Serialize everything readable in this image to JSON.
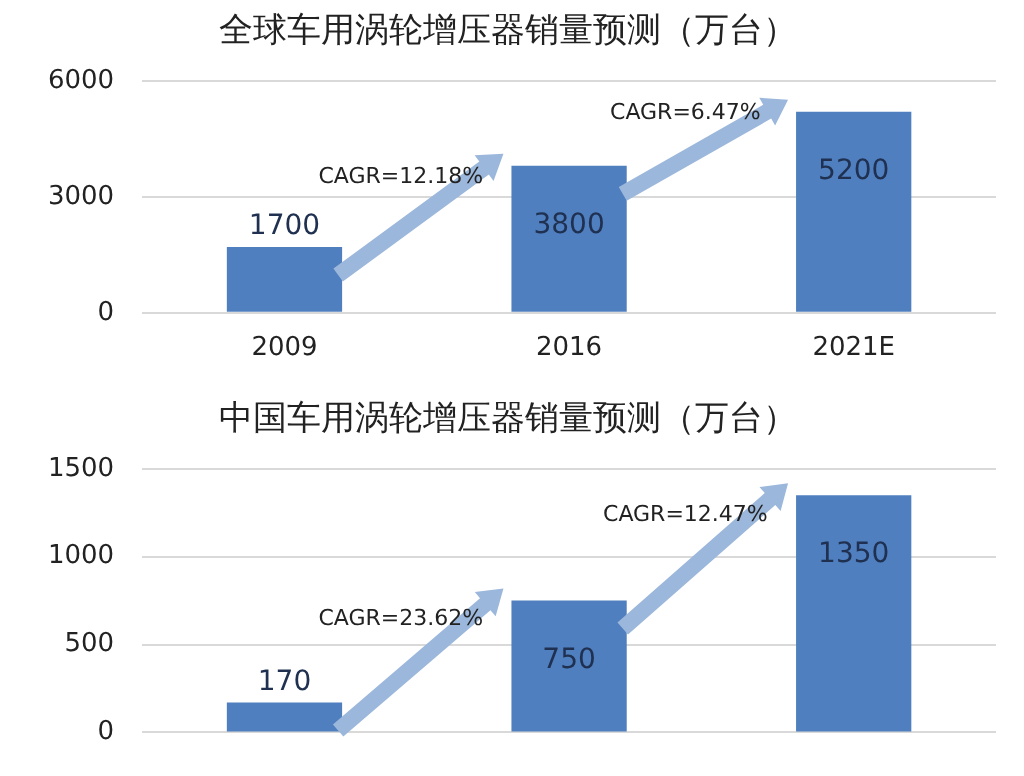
{
  "chart_data": [
    {
      "type": "bar",
      "title": "全球车用涡轮增压器销量预测（万台）",
      "categories": [
        "2009",
        "2016",
        "2021E"
      ],
      "values": [
        1700,
        3800,
        5200
      ],
      "color": "#4f7fbe",
      "ylim": [
        0,
        6000
      ],
      "yticks": [
        0,
        3000,
        6000
      ],
      "grid": "y",
      "data_labels": true,
      "legend": false,
      "annotations": [
        "CAGR=12.18%",
        "CAGR=6.47%"
      ]
    },
    {
      "type": "bar",
      "title": "中国车用涡轮增压器销量预测（万台）",
      "categories": [
        null,
        null,
        null
      ],
      "values": [
        170,
        750,
        1350
      ],
      "color": "#4f7fbe",
      "ylim": [
        0,
        1500
      ],
      "yticks": [
        0,
        500,
        1000,
        1500
      ],
      "grid": "y",
      "data_labels": true,
      "legend": false,
      "tick_labels": "y",
      "annotations": [
        "CAGR=23.62%",
        "CAGR=12.47%"
      ]
    }
  ]
}
